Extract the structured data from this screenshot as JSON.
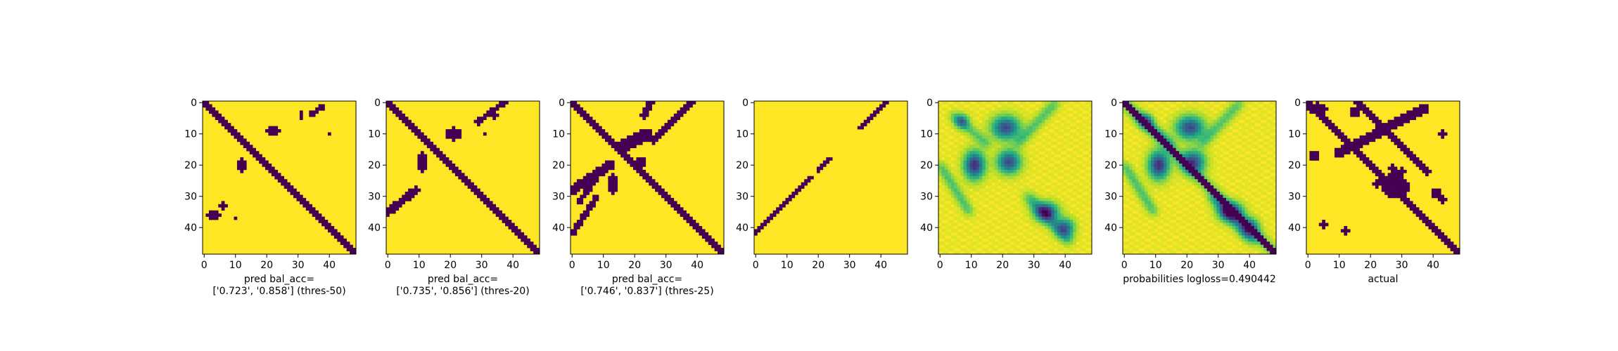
{
  "colors": {
    "background_high": "#fde725",
    "foreground_low": "#440154",
    "colormap": "viridis"
  },
  "chart_data": [
    {
      "type": "heatmap",
      "grid": [
        49,
        49
      ],
      "pattern": "thres50",
      "xticks": [
        0,
        10,
        20,
        30,
        40
      ],
      "yticks": [
        0,
        10,
        20,
        30,
        40
      ],
      "xlabel": [
        "pred bal_acc=",
        "['0.723', '0.858'] (thres-50)"
      ]
    },
    {
      "type": "heatmap",
      "grid": [
        49,
        49
      ],
      "pattern": "thres20",
      "xticks": [
        0,
        10,
        20,
        30,
        40
      ],
      "yticks": [
        0,
        10,
        20,
        30,
        40
      ],
      "xlabel": [
        "pred bal_acc=",
        "['0.735', '0.856'] (thres-20)"
      ]
    },
    {
      "type": "heatmap",
      "grid": [
        49,
        49
      ],
      "pattern": "thres25",
      "xticks": [
        0,
        10,
        20,
        30,
        40
      ],
      "yticks": [
        0,
        10,
        20,
        30,
        40
      ],
      "xlabel": [
        "pred bal_acc=",
        "['0.746', '0.837'] (thres-25)"
      ]
    },
    {
      "type": "heatmap",
      "grid": [
        49,
        49
      ],
      "pattern": "antidiag",
      "xticks": [
        0,
        10,
        20,
        30,
        40
      ],
      "yticks": [
        0,
        10,
        20,
        30,
        40
      ],
      "xlabel": []
    },
    {
      "type": "heatmap",
      "grid": [
        49,
        49
      ],
      "pattern": "prob_nodiag",
      "xticks": [
        0,
        10,
        20,
        30,
        40
      ],
      "yticks": [
        0,
        10,
        20,
        30,
        40
      ],
      "xlabel": []
    },
    {
      "type": "heatmap",
      "grid": [
        49,
        49
      ],
      "pattern": "prob_diag",
      "xticks": [
        0,
        10,
        20,
        30,
        40
      ],
      "yticks": [
        0,
        10,
        20,
        30,
        40
      ],
      "xlabel": [
        "probabilities logloss=0.490442"
      ]
    },
    {
      "type": "heatmap",
      "grid": [
        49,
        49
      ],
      "pattern": "actual",
      "xticks": [
        0,
        10,
        20,
        30,
        40
      ],
      "yticks": [
        0,
        10,
        20,
        30,
        40
      ],
      "xlabel": [
        "actual"
      ]
    }
  ]
}
